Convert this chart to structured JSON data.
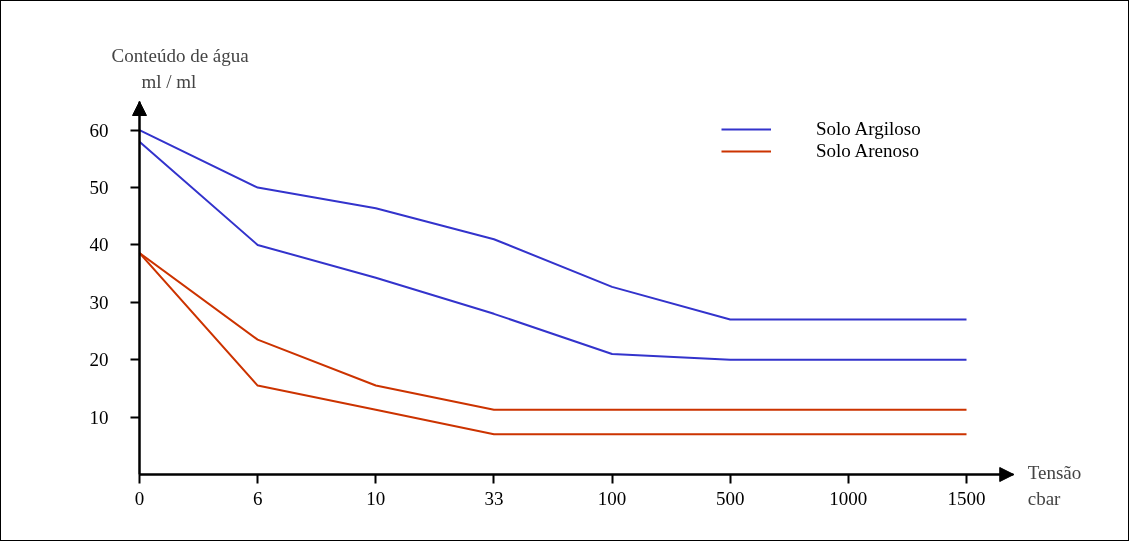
{
  "chart_data": {
    "type": "line",
    "xlabel": "Tensão\ncbar",
    "ylabel": "Conteúdo de água\n    ml / ml",
    "ylim": [
      0,
      65
    ],
    "categories": [
      "0",
      "6",
      "10",
      "33",
      "100",
      "500",
      "1000",
      "1500"
    ],
    "yticks": [
      10,
      20,
      30,
      40,
      50,
      60
    ],
    "series": [
      {
        "name": "Solo Argiloso",
        "color": "#3333cc",
        "values": [
          60,
          50,
          46.4,
          41,
          32.7,
          27,
          27,
          27
        ]
      },
      {
        "color": "#3333cc",
        "values": [
          58,
          40,
          34.3,
          28,
          21,
          20,
          20,
          20
        ]
      },
      {
        "name": "Solo Arenoso",
        "color": "#cc3300",
        "values": [
          38.6,
          23.5,
          15.5,
          11.3,
          11.3,
          11.3,
          11.3,
          11.3
        ]
      },
      {
        "color": "#cc3300",
        "values": [
          38.6,
          15.5,
          11.3,
          7,
          7,
          7,
          7,
          7
        ]
      }
    ],
    "legend": "top right",
    "grid": false,
    "marker": "none",
    "line_style": "solid"
  }
}
